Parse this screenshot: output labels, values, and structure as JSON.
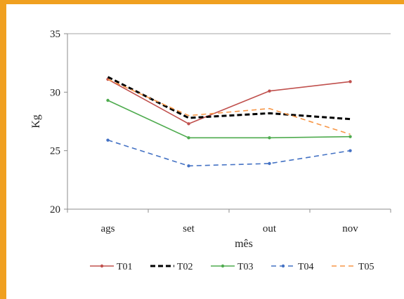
{
  "chart_data": {
    "type": "line",
    "categories": [
      "ags",
      "set",
      "out",
      "nov"
    ],
    "xlabel": "mês",
    "ylabel": "Kg",
    "ylim": [
      20,
      35
    ],
    "yticks": [
      "20",
      "25",
      "30",
      "35"
    ],
    "grid": "horizontal at max only",
    "legend": "bottom",
    "series": [
      {
        "name": "T01",
        "values": [
          31.1,
          27.3,
          30.1,
          30.9
        ],
        "color": "#c0504d",
        "dash": "solid",
        "marker": "dot"
      },
      {
        "name": "T02",
        "values": [
          31.3,
          27.8,
          28.2,
          27.7
        ],
        "color": "#000000",
        "dash": "dash-bold",
        "marker": "none"
      },
      {
        "name": "T03",
        "values": [
          29.3,
          26.1,
          26.1,
          26.2
        ],
        "color": "#4eab4e",
        "dash": "solid",
        "marker": "dot"
      },
      {
        "name": "T04",
        "values": [
          25.9,
          23.7,
          23.9,
          25.0
        ],
        "color": "#4472c4",
        "dash": "dash",
        "marker": "dot"
      },
      {
        "name": "T05",
        "values": [
          31.1,
          28.0,
          28.6,
          26.4
        ],
        "color": "#f79646",
        "dash": "dash",
        "marker": "none"
      }
    ]
  }
}
